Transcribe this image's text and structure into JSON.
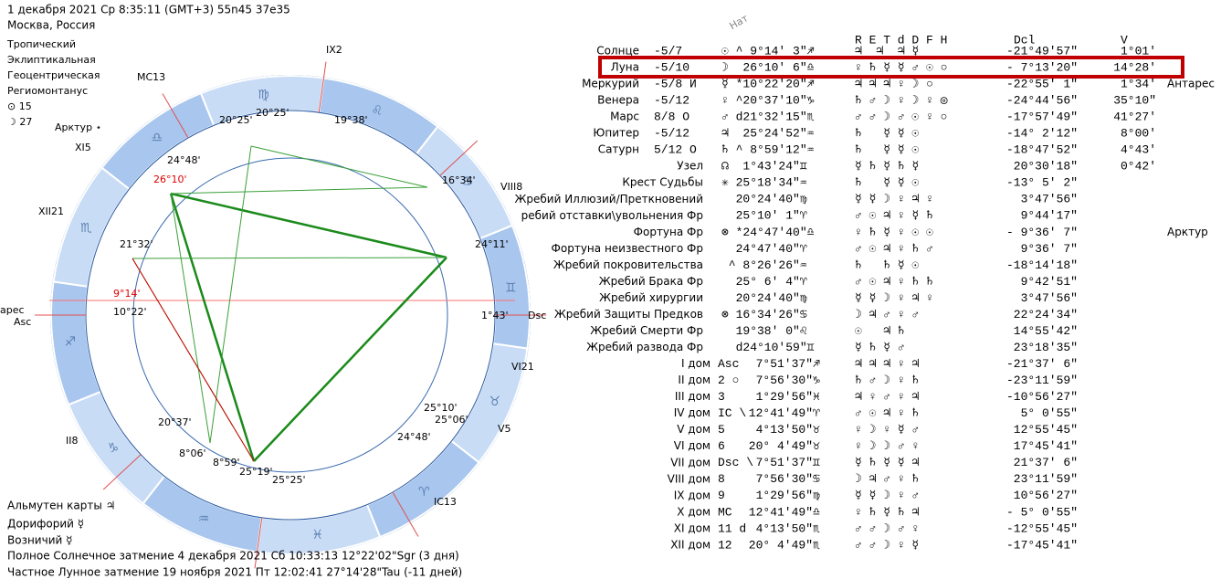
{
  "header": {
    "line1": "1 декабря 2021  Ср   8:35:11 (GMT+3) 55n45  37e35",
    "line2": "Москва, Россия"
  },
  "settings": [
    "Тропический",
    "Эклиптикальная",
    "Геоцентрическая",
    "Региомонтанус",
    "⊙  15",
    "☽  27"
  ],
  "star_left": "Арктур ⋆",
  "zodiac": [
    "♈",
    "♉",
    "♊",
    "♋",
    "♌",
    "♍",
    "♎",
    "♏",
    "♐",
    "♑",
    "♒",
    "♓"
  ],
  "wheel_labels": [
    "IX2",
    "MC13",
    "XI5",
    "XII21",
    "II8",
    "IC13",
    "V5",
    "VI21",
    "VIII8",
    "Dsc",
    "ареc",
    "Asc",
    "26°10'",
    "24°48'",
    "20°25'",
    "20°25'",
    "19°38'",
    "16°34'",
    "24°11'",
    "21°32'",
    "9°14'",
    "10°22'",
    "1°43'",
    "20°37'",
    "8°06'",
    "8°59'",
    "25°19'",
    "25°25'",
    "25°10'",
    "25°06'",
    "24°48'"
  ],
  "bottom": [
    "Альмутен карты  ♃",
    "Дорифорий  ☿",
    "Возничий  ☿",
    "Полное Солнечное затмение 4 декабря 2021 Сб 10:33:13 12°22'02\"Sgr (3 дня)",
    "Частное Лунное затмение 19 ноября 2021 Пт 12:02:41 27°14'28\"Tau (-11 дней)"
  ],
  "table": {
    "headers": {
      "nat": "Нат",
      "flags": "R E T d D F H",
      "dcl": "Dcl",
      "v": "V"
    },
    "rows": [
      {
        "name": "Солнце",
        "status": "-5/7",
        "pos": "☉ ^ 9°14' 3\"♐",
        "rulers": "♃  ♃  ♃ ☿",
        "dcl": "-21°49'57\"",
        "v": "1°01'"
      },
      {
        "name": "Луна",
        "status": "-5/10",
        "pos": "☽  26°10' 6\"♎",
        "rulers": "♀ ♄ ☿ ☿ ♂ ☉ ○",
        "dcl": "- 7°13'20\"",
        "v": "14°28'"
      },
      {
        "name": "Меркурий",
        "status": "-5/8 И",
        "pos": "☿ *10°22'20\"♐",
        "rulers": "♃ ♃ ♃ ♀ ☽ ○",
        "dcl": "-22°55' 1\"",
        "v": "1°34'",
        "extra": "Антарес"
      },
      {
        "name": "Венера",
        "status": "-5/12",
        "pos": "♀ ^20°37'10\"♑",
        "rulers": "♄ ♂ ☽ ♀ ☽ ♀ ◎",
        "dcl": "-24°44'56\"",
        "v": "35°10\""
      },
      {
        "name": "Марс",
        "status": "8/8 О",
        "pos": "♂ d21°32'15\"♏",
        "rulers": "♂ ♂ ☽ ♂ ☉ ♀ ○",
        "dcl": "-17°57'49\"",
        "v": "41°27'"
      },
      {
        "name": "Юпитер",
        "status": "-5/12",
        "pos": "♃  25°24'52\"♒",
        "rulers": "♄   ☿ ☿ ☉",
        "dcl": "-14° 2'12\"",
        "v": "8°00'"
      },
      {
        "name": "Сатурн",
        "status": "5/12 О",
        "pos": "♄ ^ 8°59'12\"♒",
        "rulers": "♄   ☿ ☿ ☉",
        "dcl": "-18°47'52\"",
        "v": "4°43'"
      },
      {
        "name": "Узел",
        "pos": "☊  1°43'24\"♊",
        "rulers": "☿ ♄ ☿ ♄ ☿",
        "dcl": "20°30'18\"",
        "v": "0°42'"
      },
      {
        "name": "Крест Судьбы",
        "pos": "✳ 25°18'34\"♒",
        "rulers": "♄   ☿ ☿ ☉",
        "dcl": "-13° 5' 2\""
      },
      {
        "name": "Жребий Иллюзий/Преткновений",
        "pos": "  20°24'40\"♍",
        "rulers": "☿ ☿ ☽ ♀ ♃ ♀",
        "dcl": "3°47'56\""
      },
      {
        "name": "ребий отставки\\увольнения Фр",
        "pos": "  25°10' 1\"♈",
        "rulers": "♂ ☉ ♃ ♀ ☿ ♄",
        "dcl": "9°44'17\""
      },
      {
        "name": "Фортуна Фр",
        "pos": "⊗ *24°47'40\"♎",
        "rulers": "♀ ♄ ☿ ♀ ☉ ☉",
        "dcl": "- 9°36' 7\"",
        "extra": "Арктур"
      },
      {
        "name": "Фортуна неизвестного Фр",
        "pos": "  24°47'40\"♈",
        "rulers": "♂ ☉ ♃ ♀ ♄ ♂",
        "dcl": "9°36' 7\""
      },
      {
        "name": "Жребий покровительства",
        "pos": " ^ 8°26'26\"♒",
        "rulers": "♄   ♄ ☿ ☉",
        "dcl": "-18°14'18\""
      },
      {
        "name": "Жребий Брака Фр",
        "pos": "  25° 6' 4\"♈",
        "rulers": "♂ ☉ ♃ ♀ ♄ ♄",
        "dcl": "9°42'51\""
      },
      {
        "name": "Жребий хирургии",
        "pos": "  20°24'40\"♍",
        "rulers": "☿ ☿ ☽ ♀ ♃ ♀",
        "dcl": "3°47'56\""
      },
      {
        "name": "Жребий Защиты Предков",
        "pos": "⊗ 16°34'26\"♋",
        "rulers": "☽ ♃ ♂ ♀ ♂",
        "dcl": "22°24'34\""
      },
      {
        "name": "Жребий Смерти Фр",
        "pos": "  19°38' 0\"♌",
        "rulers": "☉   ♃ ♄",
        "dcl": "14°55'42\""
      },
      {
        "name": "Жребий развода Фр",
        "pos": "  d24°10'59\"♊",
        "rulers": "☿ ♄ ☿ ♂",
        "dcl": "23°18'35\""
      },
      {
        "name": "I дом",
        "status": "Asc",
        "pos": "  7°51'37\"♐",
        "rulers": "♃ ♃ ♃ ♀ ♃",
        "dcl": "-21°37' 6\""
      },
      {
        "name": "II дом",
        "status": "2 ○",
        "pos": "  7°56'30\"♑",
        "rulers": "♄ ♂ ☽ ♀ ♄",
        "dcl": "-23°11'59\""
      },
      {
        "name": "III дом",
        "status": "3",
        "pos": "  1°29'56\"♓",
        "rulers": "♃ ♀ ♂ ♀ ♃",
        "dcl": "-10°56'27\""
      },
      {
        "name": "IV дом",
        "status": "IC \\",
        "pos": " 12°41'49\"♈",
        "rulers": "♂ ☉ ♃ ♀ ♄",
        "dcl": "5° 0'55\""
      },
      {
        "name": "V дом",
        "status": "5",
        "pos": "  4°13'50\"♉",
        "rulers": "♀ ☽ ♀ ☿ ♂",
        "dcl": "12°55'45\""
      },
      {
        "name": "VI дом",
        "status": "6",
        "pos": " 20° 4'49\"♉",
        "rulers": "♀ ☽ ☽ ♂ ♀",
        "dcl": "17°45'41\""
      },
      {
        "name": "VII дом",
        "status": "Dsc \\",
        "pos": "  7°51'37\"♊",
        "rulers": "☿ ♄ ☿ ☿ ♃",
        "dcl": "21°37' 6\""
      },
      {
        "name": "VIII дом",
        "status": "8",
        "pos": "  7°56'30\"♋",
        "rulers": "☽ ♃ ♂ ♀ ♄",
        "dcl": "23°11'59\""
      },
      {
        "name": "IX дом",
        "status": "9",
        "pos": "  1°29'56\"♍",
        "rulers": "☿ ☿ ☽ ♀ ♂",
        "dcl": "10°56'27\""
      },
      {
        "name": "X дом",
        "status": "MC",
        "pos": " 12°41'49\"♎",
        "rulers": "♀ ♄ ☿ ♄ ♃",
        "dcl": "- 5° 0'55\""
      },
      {
        "name": "XI дом",
        "status": "11 d",
        "pos": "  4°13'50\"♏",
        "rulers": "♂ ♂ ☽ ♂ ♀",
        "dcl": "-12°55'45\""
      },
      {
        "name": "XII дом",
        "status": "12",
        "pos": " 20° 4'49\"♏",
        "rulers": "♂ ♂ ☽ ♀ ☿",
        "dcl": "-17°45'41\""
      }
    ]
  }
}
